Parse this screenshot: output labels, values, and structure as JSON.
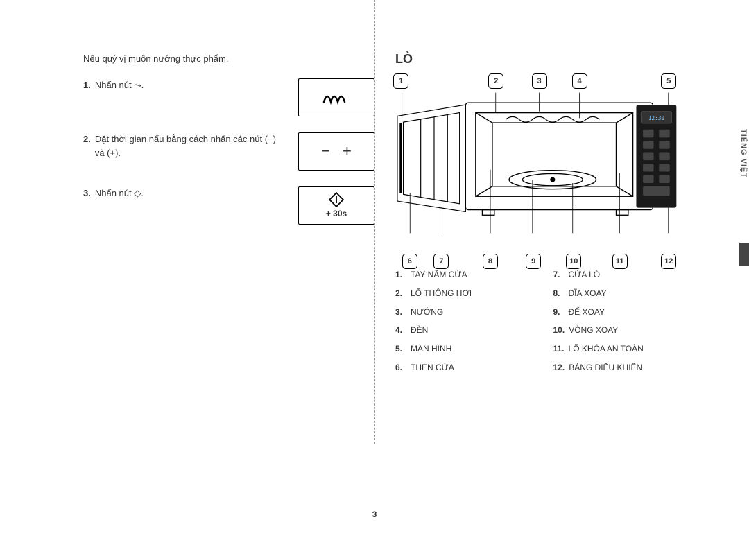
{
  "page_number": "3",
  "side_tab": "TIẾNG VIỆT",
  "left": {
    "intro": "Nếu quý vị muốn nướng thực phẩm.",
    "steps": [
      {
        "num": "1.",
        "text": "Nhấn nút ⤳.",
        "icon": "wave"
      },
      {
        "num": "2.",
        "text": "Đặt thời gian nấu bằng cách nhấn các nút (−) và (+).",
        "icon": "plusminus"
      },
      {
        "num": "3.",
        "text": "Nhấn nút ◇.",
        "icon": "start",
        "sub": "+ 30s"
      }
    ]
  },
  "right": {
    "heading": "LÒ",
    "top_callouts": [
      "1",
      "2",
      "3",
      "4",
      "5"
    ],
    "bottom_callouts": [
      "6",
      "7",
      "8",
      "9",
      "10",
      "11",
      "12"
    ],
    "legend_left": [
      {
        "num": "1.",
        "text": "TAY NẮM CỬA"
      },
      {
        "num": "2.",
        "text": "LỖ THÔNG HƠI"
      },
      {
        "num": "3.",
        "text": "NƯỚNG"
      },
      {
        "num": "4.",
        "text": "ĐÈN"
      },
      {
        "num": "5.",
        "text": "MÀN HÌNH"
      },
      {
        "num": "6.",
        "text": "THEN CỬA"
      }
    ],
    "legend_right": [
      {
        "num": "7.",
        "text": "CỬA LÒ"
      },
      {
        "num": "8.",
        "text": "ĐĨA XOAY"
      },
      {
        "num": "9.",
        "text": "ĐẾ XOAY"
      },
      {
        "num": "10.",
        "text": "VÒNG XOAY"
      },
      {
        "num": "11.",
        "text": "LỖ KHÓA AN TOÀN"
      },
      {
        "num": "12.",
        "text": "BẢNG ĐIỀU KHIỂN"
      }
    ],
    "top_positions_pct": [
      2,
      35,
      50,
      64,
      95
    ],
    "bottom_positions_pct": [
      5,
      16,
      33,
      48,
      62,
      78,
      95
    ],
    "panel_display": "12:30"
  },
  "colors": {
    "text": "#333333",
    "line": "#000000",
    "bg": "#ffffff",
    "panel": "#1a1a1a"
  }
}
